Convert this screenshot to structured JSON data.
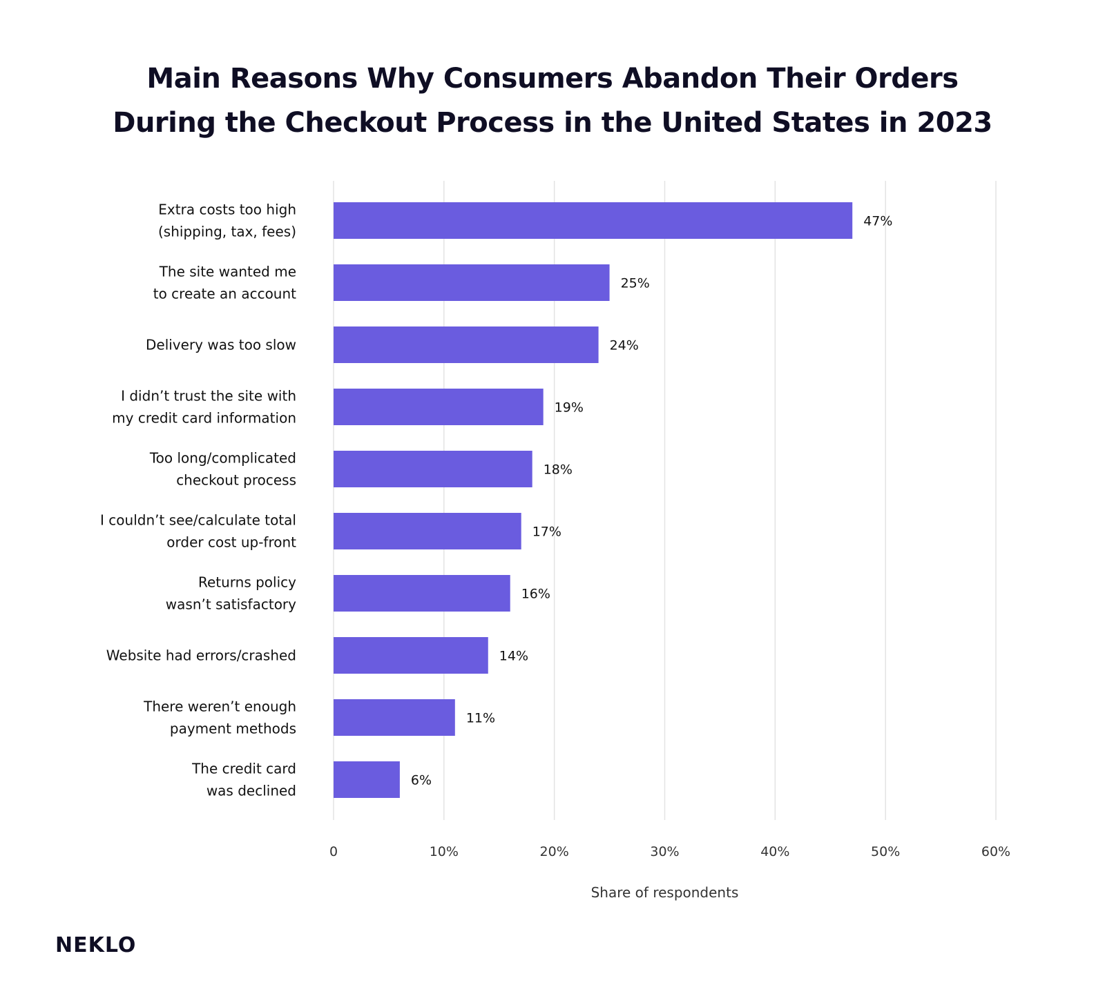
{
  "chart_data": {
    "type": "bar",
    "orientation": "horizontal",
    "title": "Main Reasons Why Consumers Abandon Their Orders During the Checkout Process in the United States in 2023",
    "title_lines": [
      "Main Reasons Why Consumers Abandon Their Orders",
      "During the Checkout Process in the United States in 2023"
    ],
    "categories": [
      [
        "Extra costs too high",
        "(shipping, tax, fees)"
      ],
      [
        "The site wanted  me",
        "to create an account"
      ],
      [
        "Delivery was too slow"
      ],
      [
        "I didn’t trust the site with",
        "my credit card information"
      ],
      [
        "Too long/complicated",
        "checkout process"
      ],
      [
        "I couldn’t see/calculate total",
        "order cost up-front"
      ],
      [
        "Returns policy",
        "wasn’t satisfactory"
      ],
      [
        "Website had errors/crashed"
      ],
      [
        "There weren’t enough",
        "payment methods"
      ],
      [
        "The credit card",
        "was declined"
      ]
    ],
    "values": [
      47,
      25,
      24,
      19,
      18,
      17,
      16,
      14,
      11,
      6
    ],
    "value_labels": [
      "47%",
      "25%",
      "24%",
      "19%",
      "18%",
      "17%",
      "16%",
      "14%",
      "11%",
      "6%"
    ],
    "xlabel": "Share of respondents",
    "ylabel": "",
    "xlim": [
      0,
      60
    ],
    "x_ticks": [
      0,
      10,
      20,
      30,
      40,
      50,
      60
    ],
    "x_tick_labels": [
      "0",
      "10%",
      "20%",
      "30%",
      "40%",
      "50%",
      "60%"
    ],
    "grid": true,
    "bar_color": "#6a5cdf",
    "grid_color": "#e3e3e3"
  },
  "brand": {
    "name": "NEKLO"
  }
}
